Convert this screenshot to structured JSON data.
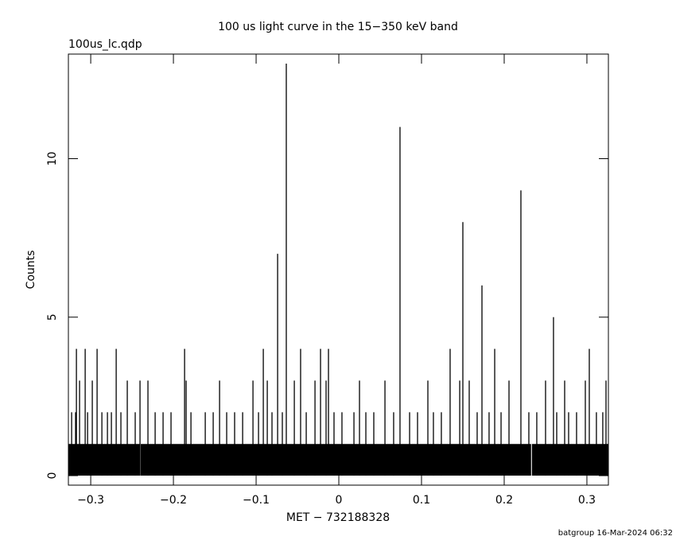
{
  "chart_data": {
    "type": "spikes",
    "title": "100 us light curve in the 15−350 keV band",
    "subtitle": "100us_lc.qdp",
    "x_label": "MET − 732188328",
    "y_label": "Counts",
    "footer": "batgroup 16-Mar-2024 06:32",
    "xlim": [
      -0.327,
      0.326
    ],
    "ylim": [
      -0.3,
      13.3
    ],
    "xticks": [
      {
        "value": -0.3,
        "label": "−0.3"
      },
      {
        "value": -0.2,
        "label": "−0.2"
      },
      {
        "value": -0.1,
        "label": "−0.1"
      },
      0,
      0.1,
      0.2,
      0.3
    ],
    "yticks": [
      0,
      5,
      10
    ],
    "color": "#000000",
    "series": [
      {
        "x": [
          -0.327,
          -0.2405,
          null,
          -0.2395,
          0.2325,
          null,
          0.2335,
          0.326
        ],
        "values": [
          1,
          1,
          null,
          1,
          1,
          null,
          1,
          1
        ]
      },
      {
        "x": [
          -0.3173,
          -0.3067,
          -0.2923,
          -0.2692,
          -0.1865,
          -0.0913,
          -0.074,
          -0.0635,
          -0.0462,
          -0.0221,
          -0.0125,
          0.074,
          0.1346,
          0.15,
          0.1731,
          0.1885,
          0.2202,
          0.2596,
          0.3029,
          -0.3135,
          -0.2981,
          -0.2558,
          -0.2404,
          -0.2308,
          -0.1846,
          -0.1442,
          -0.1038,
          -0.0865,
          -0.0538,
          -0.0288,
          -0.0154,
          0.025,
          0.0558,
          0.1077,
          0.1462,
          0.1577,
          0.2058,
          0.25,
          0.2731,
          0.2981,
          0.3231,
          -0.3231,
          -0.3183,
          -0.3038,
          -0.2865,
          -0.2798,
          -0.275,
          -0.2635,
          -0.2462,
          -0.2221,
          -0.2125,
          -0.2029,
          -0.1788,
          -0.1615,
          -0.1519,
          -0.1356,
          -0.126,
          -0.1163,
          -0.0971,
          -0.0808,
          -0.0683,
          -0.0394,
          -0.0058,
          0.0038,
          0.0183,
          0.0327,
          0.0423,
          0.0663,
          0.0856,
          0.0952,
          0.1144,
          0.124,
          0.1673,
          0.1817,
          0.1962,
          0.2298,
          0.2394,
          0.2635,
          0.2779,
          0.2875,
          0.3115,
          0.3192
        ],
        "values": [
          4,
          4,
          4,
          4,
          4,
          4,
          7,
          13,
          4,
          4,
          4,
          11,
          4,
          8,
          6,
          4,
          9,
          5,
          4,
          3,
          3,
          3,
          3,
          3,
          3,
          3,
          3,
          3,
          3,
          3,
          3,
          3,
          3,
          3,
          3,
          3,
          3,
          3,
          3,
          3,
          3,
          2,
          2,
          2,
          2,
          2,
          2,
          2,
          2,
          2,
          2,
          2,
          2,
          2,
          2,
          2,
          2,
          2,
          2,
          2,
          2,
          2,
          2,
          2,
          2,
          2,
          2,
          2,
          2,
          2,
          2,
          2,
          2,
          2,
          2,
          2,
          2,
          2,
          2,
          2,
          2,
          2
        ]
      }
    ]
  }
}
